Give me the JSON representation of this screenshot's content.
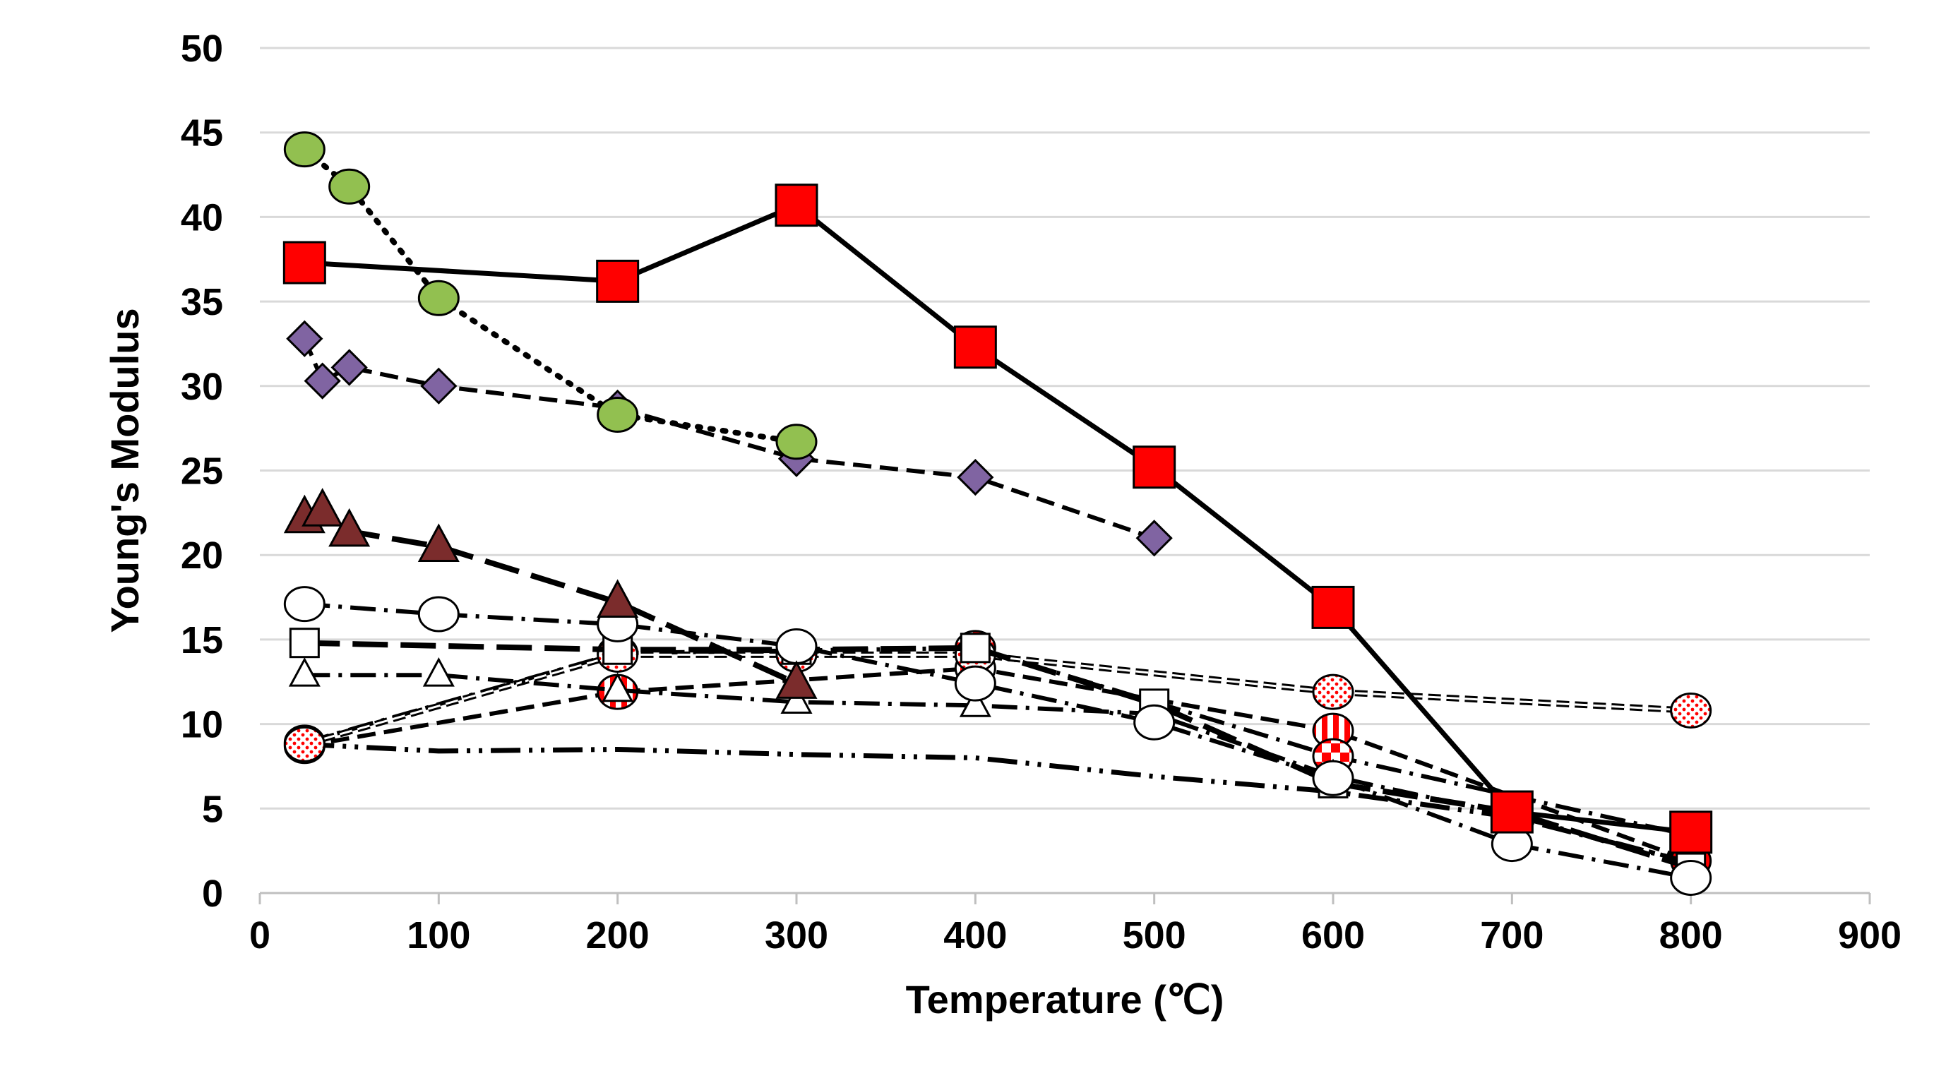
{
  "chart_data": {
    "type": "line",
    "title": "",
    "xlabel": "Temperature (℃)",
    "ylabel": "Young's Modulus",
    "xlim": [
      0,
      900
    ],
    "ylim": [
      0,
      50
    ],
    "x_ticks": [
      0,
      100,
      200,
      300,
      400,
      500,
      600,
      700,
      800,
      900
    ],
    "y_ticks": [
      0,
      5,
      10,
      15,
      20,
      25,
      30,
      35,
      40,
      45,
      50
    ],
    "grid": "horizontal",
    "legend": "none",
    "series": [
      {
        "name": "red squares",
        "marker": "square",
        "fill": "red",
        "line": "solid",
        "points": [
          [
            25,
            37.3
          ],
          [
            200,
            36.2
          ],
          [
            300,
            40.7
          ],
          [
            400,
            32.3
          ],
          [
            500,
            25.2
          ],
          [
            600,
            16.9
          ],
          [
            700,
            4.8
          ],
          [
            800,
            3.6
          ]
        ]
      },
      {
        "name": "green circles",
        "marker": "circle",
        "fill": "green",
        "line": "dotted",
        "points": [
          [
            25,
            44.0
          ],
          [
            50,
            41.8
          ],
          [
            100,
            35.2
          ],
          [
            200,
            28.3
          ],
          [
            300,
            26.7
          ]
        ]
      },
      {
        "name": "purple diamonds",
        "marker": "diamond",
        "fill": "purple",
        "line": "dashed",
        "points": [
          [
            25,
            32.8
          ],
          [
            35,
            30.3
          ],
          [
            50,
            31.1
          ],
          [
            100,
            30.0
          ],
          [
            200,
            28.7
          ],
          [
            300,
            25.7
          ],
          [
            400,
            24.6
          ],
          [
            500,
            21.0
          ]
        ]
      },
      {
        "name": "brown triangles",
        "marker": "triangle",
        "fill": "brown",
        "line": "longdash",
        "points": [
          [
            25,
            22.2
          ],
          [
            35,
            22.6
          ],
          [
            50,
            21.4
          ],
          [
            100,
            20.5
          ],
          [
            200,
            17.2
          ],
          [
            300,
            12.4
          ]
        ]
      },
      {
        "name": "open circles",
        "marker": "circle",
        "fill": "white",
        "line": "dashdot",
        "points": [
          [
            25,
            17.1
          ],
          [
            100,
            16.5
          ],
          [
            200,
            15.9
          ],
          [
            300,
            14.6
          ],
          [
            400,
            12.4
          ],
          [
            500,
            10.1
          ],
          [
            600,
            6.8
          ],
          [
            700,
            2.9
          ],
          [
            800,
            0.9
          ]
        ]
      },
      {
        "name": "open squares",
        "marker": "square",
        "fill": "white",
        "line": "longdash",
        "points": [
          [
            25,
            14.8
          ],
          [
            200,
            14.4
          ],
          [
            300,
            14.4
          ],
          [
            400,
            14.5
          ],
          [
            500,
            11.2
          ],
          [
            600,
            6.5
          ],
          [
            700,
            4.8
          ],
          [
            800,
            1.5
          ]
        ]
      },
      {
        "name": "open triangles",
        "marker": "triangle",
        "fill": "white",
        "line": "dashdot",
        "points": [
          [
            25,
            12.9
          ],
          [
            100,
            12.9
          ],
          [
            200,
            12.0
          ],
          [
            300,
            11.3
          ],
          [
            400,
            11.1
          ],
          [
            500,
            10.6
          ],
          [
            600,
            6.9
          ],
          [
            700,
            4.6
          ],
          [
            800,
            1.8
          ]
        ]
      },
      {
        "name": "dotted circles",
        "marker": "circle",
        "fill": "dots",
        "line": "double",
        "points": [
          [
            25,
            8.8
          ],
          [
            200,
            14.1
          ],
          [
            300,
            14.1
          ],
          [
            400,
            14.1
          ],
          [
            600,
            11.9
          ],
          [
            800,
            10.8
          ]
        ]
      },
      {
        "name": "checkered circles",
        "marker": "circle",
        "fill": "checker",
        "line": "dashdot",
        "points": [
          [
            25,
            8.9
          ],
          [
            200,
            14.2
          ],
          [
            400,
            14.5
          ],
          [
            600,
            8.1
          ],
          [
            800,
            3.4
          ]
        ]
      },
      {
        "name": "striped circles",
        "marker": "circle",
        "fill": "stripes",
        "line": "dashed",
        "points": [
          [
            25,
            8.7
          ],
          [
            200,
            11.9
          ],
          [
            400,
            13.3
          ],
          [
            600,
            9.6
          ],
          [
            800,
            1.9
          ]
        ]
      },
      {
        "name": "plain line",
        "marker": "none",
        "fill": "none",
        "line": "dashdotdot",
        "points": [
          [
            25,
            8.8
          ],
          [
            100,
            8.4
          ],
          [
            200,
            8.5
          ],
          [
            300,
            8.2
          ],
          [
            400,
            8.0
          ],
          [
            500,
            6.9
          ],
          [
            600,
            6.0
          ],
          [
            700,
            4.5
          ],
          [
            800,
            1.8
          ]
        ]
      }
    ]
  },
  "colors": {
    "red": "#ff0000",
    "green": "#92c050",
    "purple": "#8064a2",
    "brown": "#7b2c2c",
    "grid": "#d9d9d9",
    "axis": "#bfbfbf"
  }
}
